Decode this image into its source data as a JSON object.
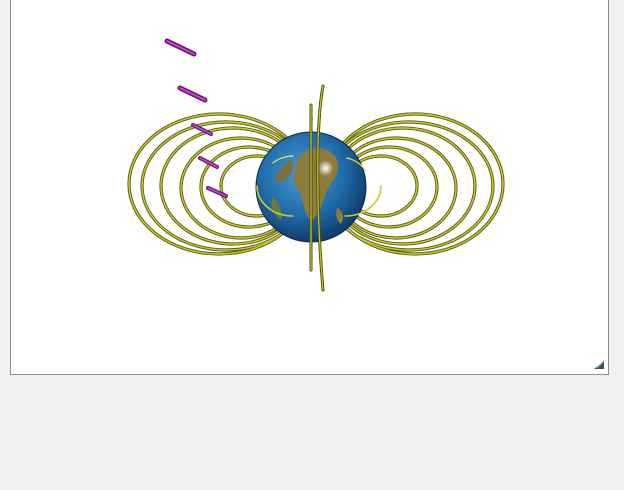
{
  "scene": {
    "object": "earth-globe",
    "field_line_color": "#a3a320",
    "field_line_highlight": "#f0f07a",
    "field_line_shadow": "#4a4a08",
    "particle_color": "#9b1fa3",
    "globe_ocean": "#1f6aa8",
    "globe_land": "#8a7a3a",
    "background": "#ffffff"
  },
  "panel": {
    "background": "#eff1f2"
  },
  "icons": {
    "resize": "resize-handle-icon"
  }
}
